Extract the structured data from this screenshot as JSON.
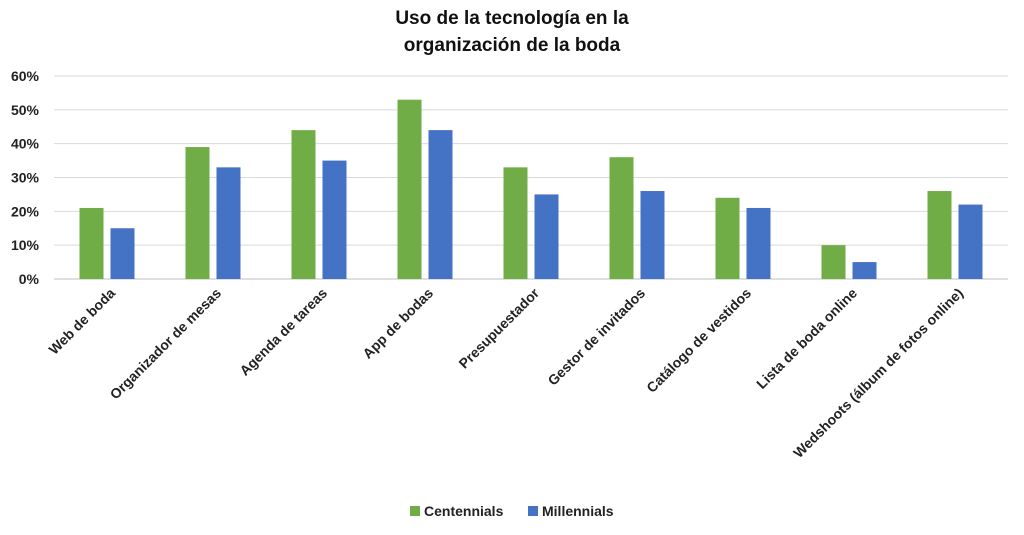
{
  "chart_data": {
    "type": "bar",
    "title": "Uso de la tecnología en la organización de la boda",
    "title_lines": [
      "Uso de la tecnología en la",
      "organización de la boda"
    ],
    "categories": [
      "Web de boda",
      "Organizador de mesas",
      "Agenda de tareas",
      "App de bodas",
      "Presupuestador",
      "Gestor de invitados",
      "Catálogo de vestidos",
      "Lista de boda online",
      "Wedshoots (álbum de fotos online)"
    ],
    "series": [
      {
        "name": "Centennials",
        "color": "#70ad47",
        "values": [
          21,
          39,
          44,
          53,
          33,
          36,
          24,
          10,
          26
        ]
      },
      {
        "name": "Millennials",
        "color": "#4472c4",
        "values": [
          15,
          33,
          35,
          44,
          25,
          26,
          21,
          5,
          22
        ]
      }
    ],
    "ylim": [
      0,
      60
    ],
    "yticks": [
      0,
      10,
      20,
      30,
      40,
      50,
      60
    ],
    "ytick_labels": [
      "0%",
      "10%",
      "20%",
      "30%",
      "40%",
      "50%",
      "60%"
    ],
    "unit": "%",
    "grid": true,
    "legend_position": "bottom",
    "xlabel": "",
    "ylabel": ""
  }
}
